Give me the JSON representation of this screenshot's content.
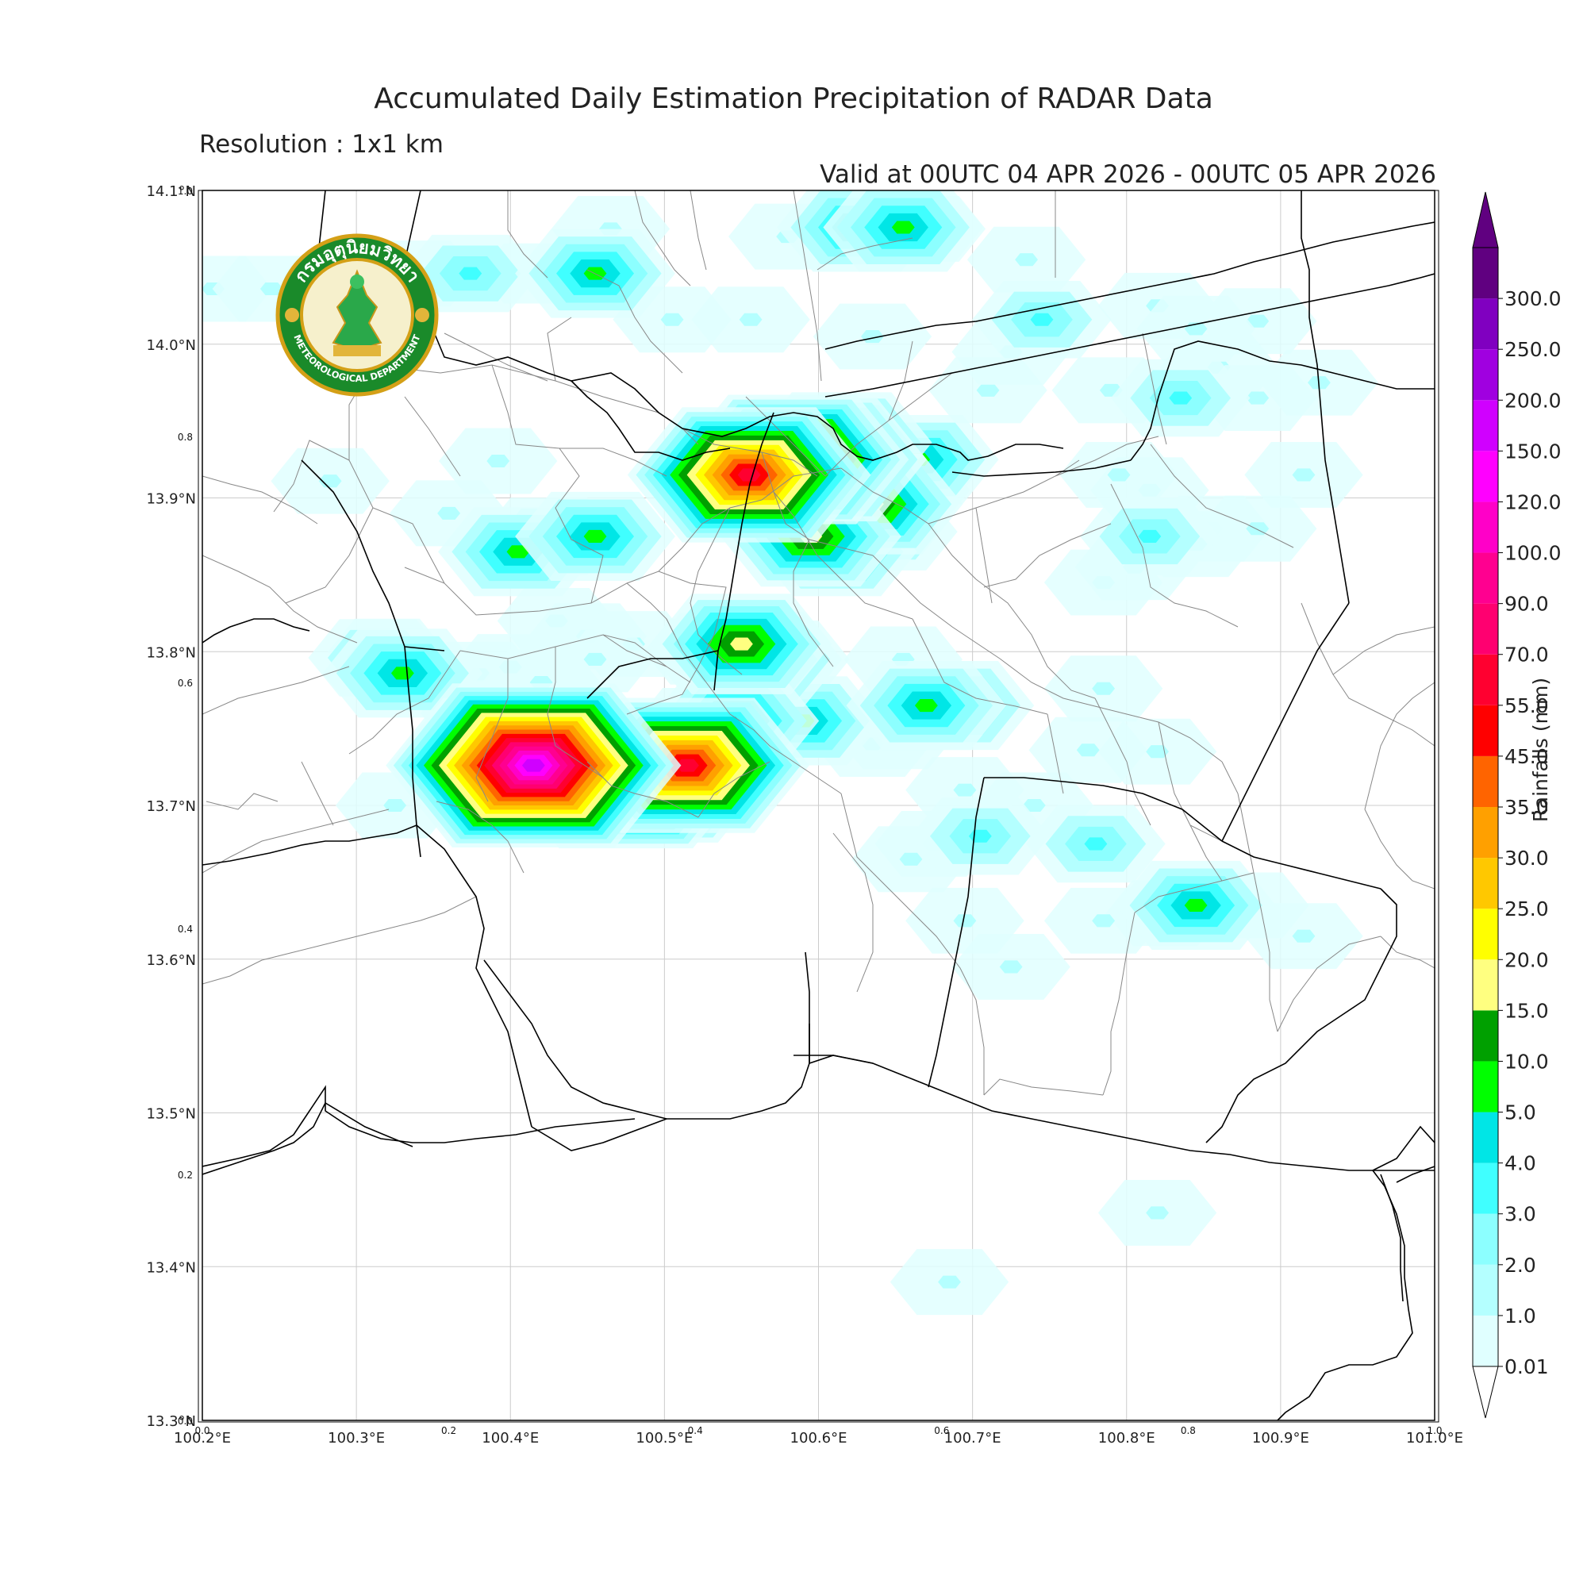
{
  "title": "Accumulated Daily Estimation Precipitation of RADAR Data",
  "resolution": "Resolution : 1x1 km",
  "valid": "Valid at 00UTC 04 APR 2026 - 00UTC 05 APR 2026",
  "logo": {
    "thai_text": "กรมอุตุนิยมวิทยา",
    "english_text": "METEOROLOGICAL DEPARTMENT",
    "icon": "tmd-seal-icon"
  },
  "map": {
    "lat_labels": [
      "14.1°N",
      "14.0°N",
      "13.9°N",
      "13.8°N",
      "13.7°N",
      "13.6°N",
      "13.5°N",
      "13.4°N",
      "13.3°N"
    ],
    "lon_labels": [
      "100.2°E",
      "100.3°E",
      "100.4°E",
      "100.5°E",
      "100.6°E",
      "100.7°E",
      "100.8°E",
      "100.9°E",
      "101.0°E"
    ],
    "inner_y_labels": [
      "1.0",
      "0.8",
      "0.6",
      "0.4",
      "0.2",
      "0.0"
    ],
    "inner_x_labels": [
      "0.0",
      "0.2",
      "0.4",
      "0.6",
      "0.8",
      "1.0"
    ]
  },
  "colorbar": {
    "label": "Rainfalls (mm)",
    "levels": [
      "0.01",
      "1.0",
      "2.0",
      "3.0",
      "4.0",
      "5.0",
      "10.0",
      "15.0",
      "20.0",
      "25.0",
      "30.0",
      "35.0",
      "45.0",
      "55.0",
      "70.0",
      "90.0",
      "100.0",
      "120.0",
      "150.0",
      "200.0",
      "250.0",
      "300.0"
    ],
    "colors": [
      "#e0ffff",
      "#b4ffff",
      "#8cffff",
      "#40ffff",
      "#00e6e6",
      "#00ff00",
      "#00a000",
      "#ffff80",
      "#ffff00",
      "#ffc800",
      "#ffa000",
      "#ff6400",
      "#ff0000",
      "#ff0030",
      "#ff0070",
      "#ff0090",
      "#ff00c8",
      "#ff00ff",
      "#d000ff",
      "#a000e0",
      "#8000c0",
      "#600080"
    ]
  },
  "rain_cells": [
    {
      "lon": 100.207,
      "lat": 14.036,
      "v": 1.5
    },
    {
      "lon": 100.245,
      "lat": 14.036,
      "v": 1.5
    },
    {
      "lon": 100.34,
      "lat": 14.046,
      "v": 1.5
    },
    {
      "lon": 100.374,
      "lat": 14.046,
      "v": 3.5
    },
    {
      "lon": 100.415,
      "lat": 14.046,
      "v": 0.5
    },
    {
      "lon": 100.455,
      "lat": 14.046,
      "v": 8
    },
    {
      "lon": 100.465,
      "lat": 14.075,
      "v": 1.5
    },
    {
      "lon": 100.58,
      "lat": 14.07,
      "v": 1.5
    },
    {
      "lon": 100.625,
      "lat": 14.076,
      "v": 8
    },
    {
      "lon": 100.655,
      "lat": 14.076,
      "v": 8
    },
    {
      "lon": 100.67,
      "lat": 14.075,
      "v": 1.5
    },
    {
      "lon": 100.735,
      "lat": 14.055,
      "v": 1
    },
    {
      "lon": 100.505,
      "lat": 14.016,
      "v": 1.5
    },
    {
      "lon": 100.556,
      "lat": 14.016,
      "v": 1.5
    },
    {
      "lon": 100.745,
      "lat": 14.016,
      "v": 3
    },
    {
      "lon": 100.82,
      "lat": 14.025,
      "v": 1.5
    },
    {
      "lon": 100.845,
      "lat": 14.01,
      "v": 1.5
    },
    {
      "lon": 100.885,
      "lat": 14.015,
      "v": 1
    },
    {
      "lon": 100.635,
      "lat": 14.005,
      "v": 1
    },
    {
      "lon": 100.71,
      "lat": 13.97,
      "v": 1.5
    },
    {
      "lon": 100.725,
      "lat": 13.995,
      "v": 1.5
    },
    {
      "lon": 100.79,
      "lat": 13.97,
      "v": 1.5
    },
    {
      "lon": 100.835,
      "lat": 13.965,
      "v": 3
    },
    {
      "lon": 100.86,
      "lat": 13.985,
      "v": 1
    },
    {
      "lon": 100.885,
      "lat": 13.965,
      "v": 1.5
    },
    {
      "lon": 100.925,
      "lat": 13.975,
      "v": 1
    },
    {
      "lon": 100.283,
      "lat": 13.911,
      "v": 1
    },
    {
      "lon": 100.36,
      "lat": 13.89,
      "v": 1.5
    },
    {
      "lon": 100.392,
      "lat": 13.924,
      "v": 1.5
    },
    {
      "lon": 100.545,
      "lat": 13.91,
      "v": 1.5
    },
    {
      "lon": 100.568,
      "lat": 13.915,
      "v": 3
    },
    {
      "lon": 100.583,
      "lat": 13.925,
      "v": 45
    },
    {
      "lon": 100.598,
      "lat": 13.925,
      "v": 40
    },
    {
      "lon": 100.615,
      "lat": 13.936,
      "v": 15
    },
    {
      "lon": 100.555,
      "lat": 13.915,
      "v": 60
    },
    {
      "lon": 100.635,
      "lat": 13.896,
      "v": 15
    },
    {
      "lon": 100.65,
      "lat": 13.915,
      "v": 5
    },
    {
      "lon": 100.665,
      "lat": 13.925,
      "v": 7
    },
    {
      "lon": 100.66,
      "lat": 13.905,
      "v": 1.5
    },
    {
      "lon": 100.595,
      "lat": 13.875,
      "v": 15
    },
    {
      "lon": 100.612,
      "lat": 13.865,
      "v": 8
    },
    {
      "lon": 100.625,
      "lat": 13.878,
      "v": 3
    },
    {
      "lon": 100.645,
      "lat": 13.878,
      "v": 3
    },
    {
      "lon": 100.405,
      "lat": 13.865,
      "v": 8
    },
    {
      "lon": 100.425,
      "lat": 13.875,
      "v": 3
    },
    {
      "lon": 100.455,
      "lat": 13.875,
      "v": 8
    },
    {
      "lon": 100.43,
      "lat": 13.82,
      "v": 1
    },
    {
      "lon": 100.45,
      "lat": 13.81,
      "v": 1
    },
    {
      "lon": 100.48,
      "lat": 13.805,
      "v": 1
    },
    {
      "lon": 100.33,
      "lat": 13.786,
      "v": 8
    },
    {
      "lon": 100.314,
      "lat": 13.796,
      "v": 3
    },
    {
      "lon": 100.38,
      "lat": 13.785,
      "v": 1
    },
    {
      "lon": 100.4,
      "lat": 13.79,
      "v": 1
    },
    {
      "lon": 100.42,
      "lat": 13.78,
      "v": 1
    },
    {
      "lon": 100.38,
      "lat": 13.76,
      "v": 1
    },
    {
      "lon": 100.455,
      "lat": 13.795,
      "v": 1
    },
    {
      "lon": 100.55,
      "lat": 13.805,
      "v": 18
    },
    {
      "lon": 100.56,
      "lat": 13.795,
      "v": 12
    },
    {
      "lon": 100.535,
      "lat": 13.8,
      "v": 3
    },
    {
      "lon": 100.575,
      "lat": 13.795,
      "v": 3
    },
    {
      "lon": 100.525,
      "lat": 13.8,
      "v": 1.5
    },
    {
      "lon": 100.545,
      "lat": 13.755,
      "v": 12
    },
    {
      "lon": 100.59,
      "lat": 13.755,
      "v": 8
    },
    {
      "lon": 100.565,
      "lat": 13.755,
      "v": 3
    },
    {
      "lon": 100.52,
      "lat": 13.755,
      "v": 1.5
    },
    {
      "lon": 100.67,
      "lat": 13.765,
      "v": 8
    },
    {
      "lon": 100.688,
      "lat": 13.765,
      "v": 7
    },
    {
      "lon": 100.65,
      "lat": 13.745,
      "v": 1.5
    },
    {
      "lon": 100.635,
      "lat": 13.74,
      "v": 1
    },
    {
      "lon": 100.415,
      "lat": 13.726,
      "v": 150
    },
    {
      "lon": 100.4,
      "lat": 13.726,
      "v": 60
    },
    {
      "lon": 100.43,
      "lat": 13.726,
      "v": 30
    },
    {
      "lon": 100.38,
      "lat": 13.726,
      "v": 1.5
    },
    {
      "lon": 100.42,
      "lat": 13.7,
      "v": 1.5
    },
    {
      "lon": 100.445,
      "lat": 13.71,
      "v": 3
    },
    {
      "lon": 100.475,
      "lat": 13.716,
      "v": 60
    },
    {
      "lon": 100.46,
      "lat": 13.716,
      "v": 25
    },
    {
      "lon": 100.495,
      "lat": 13.716,
      "v": 40
    },
    {
      "lon": 100.515,
      "lat": 13.726,
      "v": 60
    },
    {
      "lon": 100.5,
      "lat": 13.725,
      "v": 5
    },
    {
      "lon": 100.785,
      "lat": 13.776,
      "v": 1
    },
    {
      "lon": 100.775,
      "lat": 13.736,
      "v": 1.5
    },
    {
      "lon": 100.82,
      "lat": 13.735,
      "v": 1
    },
    {
      "lon": 100.695,
      "lat": 13.71,
      "v": 1.5
    },
    {
      "lon": 100.705,
      "lat": 13.68,
      "v": 3
    },
    {
      "lon": 100.675,
      "lat": 13.675,
      "v": 1
    },
    {
      "lon": 100.74,
      "lat": 13.7,
      "v": 1
    },
    {
      "lon": 100.78,
      "lat": 13.675,
      "v": 3
    },
    {
      "lon": 100.66,
      "lat": 13.665,
      "v": 1
    },
    {
      "lon": 100.325,
      "lat": 13.7,
      "v": 1
    },
    {
      "lon": 100.32,
      "lat": 13.8,
      "v": 1.5
    },
    {
      "lon": 100.845,
      "lat": 13.635,
      "v": 6
    },
    {
      "lon": 100.825,
      "lat": 13.63,
      "v": 1
    },
    {
      "lon": 100.88,
      "lat": 13.635,
      "v": 1
    },
    {
      "lon": 100.915,
      "lat": 13.615,
      "v": 1
    },
    {
      "lon": 100.785,
      "lat": 13.625,
      "v": 1
    },
    {
      "lon": 100.725,
      "lat": 13.595,
      "v": 1
    },
    {
      "lon": 100.695,
      "lat": 13.625,
      "v": 1.5
    },
    {
      "lon": 100.785,
      "lat": 13.845,
      "v": 1.5
    },
    {
      "lon": 100.805,
      "lat": 13.855,
      "v": 1.5
    },
    {
      "lon": 100.815,
      "lat": 13.875,
      "v": 3
    },
    {
      "lon": 100.815,
      "lat": 13.905,
      "v": 1
    },
    {
      "lon": 100.795,
      "lat": 13.915,
      "v": 1
    },
    {
      "lon": 100.855,
      "lat": 13.88,
      "v": 1
    },
    {
      "lon": 100.885,
      "lat": 13.88,
      "v": 1
    },
    {
      "lon": 100.915,
      "lat": 13.915,
      "v": 1.5
    },
    {
      "lon": 100.845,
      "lat": 13.87,
      "v": 1
    },
    {
      "lon": 100.655,
      "lat": 13.795,
      "v": 1
    },
    {
      "lon": 100.82,
      "lat": 13.435,
      "v": 1
    },
    {
      "lon": 100.685,
      "lat": 13.39,
      "v": 1
    }
  ]
}
